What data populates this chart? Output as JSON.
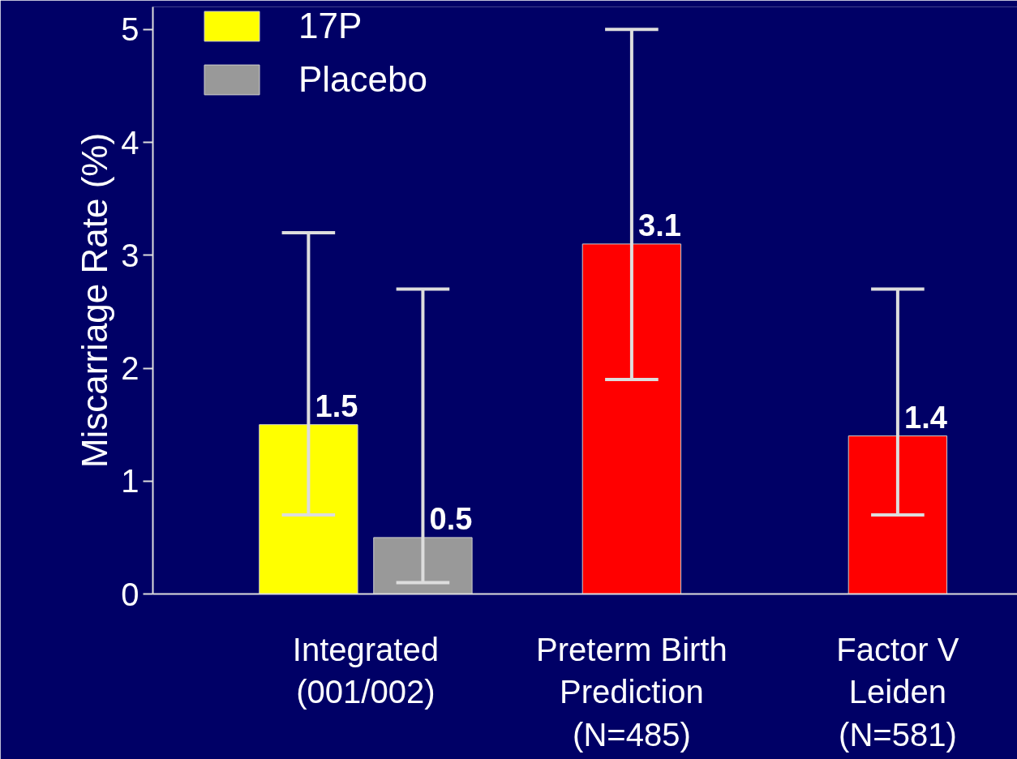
{
  "chart_data": {
    "type": "bar",
    "categories": [
      "Integrated\n(001/002)",
      "Preterm Birth\nPrediction\n(N=485)",
      "Factor V\nLeiden\n(N=581)"
    ],
    "ylabel": "Miscarriage Rate (%)",
    "series": [
      {
        "name": "17P",
        "color": "#ffff00",
        "values": [
          1.5,
          null,
          null
        ],
        "errors": [
          [
            0.7,
            3.2
          ],
          null,
          null
        ]
      },
      {
        "name": "Placebo",
        "color": "#999999",
        "values": [
          0.5,
          null,
          null
        ],
        "errors": [
          [
            0.1,
            2.7
          ],
          null,
          null
        ]
      },
      {
        "color": "#ff0000",
        "values": [
          null,
          3.1,
          1.4
        ],
        "errors": [
          null,
          [
            1.9,
            5.0
          ],
          [
            0.7,
            2.7
          ]
        ]
      }
    ],
    "ylim": [
      0,
      5.2
    ],
    "yticks": [
      0,
      1,
      2,
      3,
      4,
      5
    ],
    "data_labels": true,
    "legend": "top left",
    "grid": false
  }
}
